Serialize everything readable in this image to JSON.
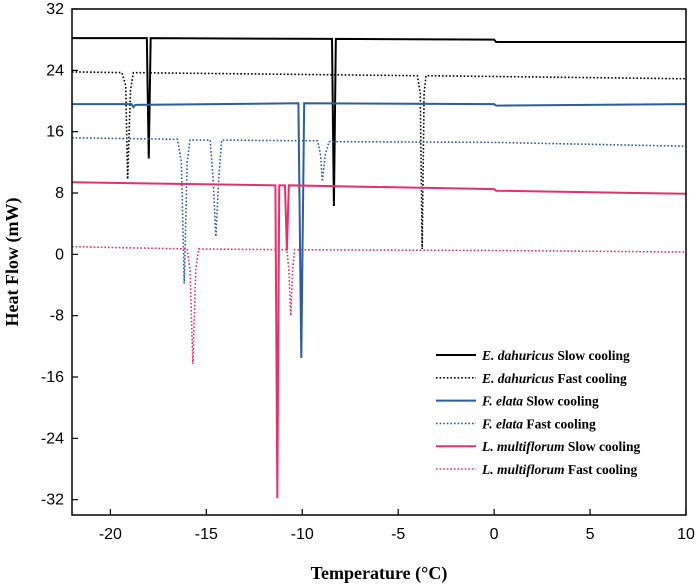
{
  "chart_data": {
    "type": "line",
    "title": "",
    "xlabel": "Temperature (°C)",
    "ylabel": "Heat Flow (mW)",
    "xlim": [
      -22,
      10
    ],
    "ylim": [
      -34,
      32
    ],
    "xticks": [
      -20,
      -15,
      -10,
      -5,
      0,
      5,
      10
    ],
    "yticks": [
      -32,
      -24,
      -16,
      -8,
      0,
      8,
      16,
      24,
      32
    ],
    "xtick_labels": [
      "-20",
      "-15",
      "-10",
      "-5",
      "0",
      "5",
      "10"
    ],
    "ytick_labels": [
      "-32",
      "-24",
      "-16",
      "-8",
      "0",
      "8",
      "16",
      "24",
      "32"
    ],
    "grid": false,
    "legend_position": "bottom-right",
    "series": [
      {
        "name": "E. dahuricus Slow cooling",
        "species": "E. dahuricus",
        "condition": "Slow cooling",
        "color": "#000000",
        "style": "solid",
        "x": [
          -22,
          -18.1,
          -18.0,
          -17.9,
          -8.45,
          -8.35,
          -8.25,
          0,
          0.1,
          10
        ],
        "y": [
          28.2,
          28.2,
          12.5,
          28.2,
          28.1,
          6.3,
          28.1,
          28.0,
          27.7,
          27.7
        ]
      },
      {
        "name": "E. dahuricus Fast cooling",
        "species": "E. dahuricus",
        "condition": "Fast cooling",
        "color": "#000000",
        "style": "dotted",
        "x": [
          -22,
          -19.4,
          -19.2,
          -19.1,
          -18.95,
          -18.8,
          -4.0,
          -3.85,
          -3.75,
          -3.65,
          -3.55,
          0,
          10
        ],
        "y": [
          23.8,
          23.7,
          22.0,
          9.8,
          21.5,
          23.7,
          23.3,
          21.0,
          0.7,
          21.0,
          23.3,
          23.2,
          22.9
        ]
      },
      {
        "name": "F. elata Slow cooling",
        "species": "F. elata",
        "condition": "Slow cooling",
        "color": "#2e5c9e",
        "style": "solid",
        "x": [
          -22,
          -18.9,
          -18.8,
          -18.7,
          -10.2,
          -10.05,
          -9.9,
          0,
          0.1,
          10
        ],
        "y": [
          19.6,
          19.6,
          19.2,
          19.5,
          19.7,
          -13.5,
          19.7,
          19.6,
          19.4,
          19.6
        ]
      },
      {
        "name": "F. elata Fast cooling",
        "species": "F. elata",
        "condition": "Fast cooling",
        "color": "#2e5c9e",
        "style": "dotted",
        "x": [
          -22,
          -16.5,
          -16.3,
          -16.15,
          -16.0,
          -15.85,
          -14.8,
          -14.65,
          -14.5,
          -14.35,
          -14.2,
          -9.2,
          -9.05,
          -8.95,
          -8.8,
          -8.6,
          0,
          10
        ],
        "y": [
          15.2,
          15.0,
          12.0,
          -3.8,
          12.0,
          14.9,
          14.9,
          10.0,
          2.3,
          10.0,
          14.9,
          14.8,
          13.0,
          9.5,
          13.0,
          14.7,
          14.6,
          14.1
        ]
      },
      {
        "name": "L. multiflorum Slow cooling",
        "species": "L. multiflorum",
        "condition": "Slow cooling",
        "color": "#e0336a",
        "style": "solid",
        "x": [
          -22,
          -11.4,
          -11.3,
          -11.2,
          -10.9,
          -10.8,
          -10.7,
          0,
          0.1,
          10
        ],
        "y": [
          9.4,
          9.0,
          -31.8,
          9.0,
          9.0,
          0.5,
          9.0,
          8.5,
          8.3,
          7.9
        ]
      },
      {
        "name": "L. multiflorum Fast cooling",
        "species": "L. multiflorum",
        "condition": "Fast cooling",
        "color": "#e0336a",
        "style": "dotted",
        "x": [
          -22,
          -16.0,
          -15.85,
          -15.7,
          -15.55,
          -15.4,
          -10.8,
          -10.7,
          -10.6,
          -10.5,
          -10.4,
          0,
          10
        ],
        "y": [
          1.0,
          0.7,
          -2.0,
          -14.3,
          -2.0,
          0.7,
          0.6,
          -2.0,
          -8.0,
          -2.0,
          0.6,
          0.5,
          0.3
        ]
      }
    ]
  }
}
